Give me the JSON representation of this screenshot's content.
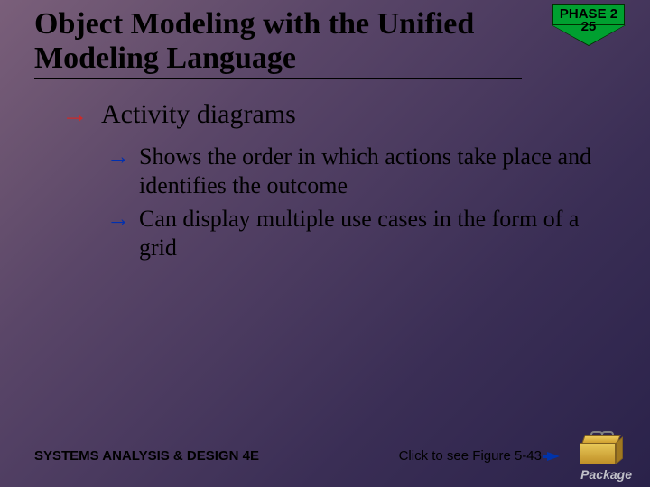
{
  "title": "Object Modeling with the Unified Modeling Language",
  "phase": {
    "label": "PHASE 2",
    "number": "25"
  },
  "bullets": {
    "level1": "Activity diagrams",
    "level2": [
      "Shows the order in which actions take place and identifies the outcome",
      "Can display multiple use cases in the form of a grid"
    ]
  },
  "footer": {
    "left": "SYSTEMS ANALYSIS & DESIGN 4E",
    "clickText": "Click to see Figure 5-43",
    "packageLabel": "Package"
  },
  "colors": {
    "bullet1Arrow": "#cc2a2a",
    "bullet2Arrow": "#0030b0",
    "phaseGreen": "#00a030",
    "linkArrow": "#0033aa"
  }
}
